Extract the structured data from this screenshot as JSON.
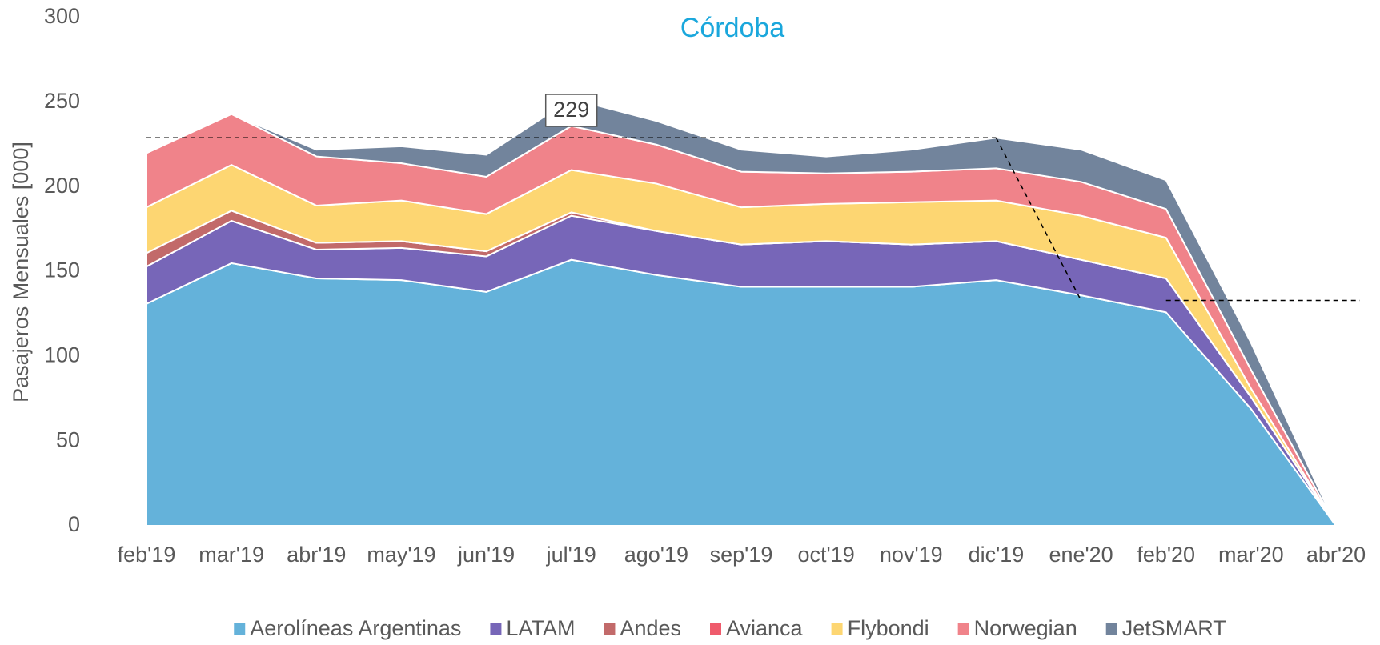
{
  "chart_data": {
    "type": "stacked_area",
    "title": "Córdoba",
    "y_label": "Pasajeros Mensuales [000]",
    "categories": [
      "feb'19",
      "mar'19",
      "abr'19",
      "may'19",
      "jun'19",
      "jul'19",
      "ago'19",
      "sep'19",
      "oct'19",
      "nov'19",
      "dic'19",
      "ene'20",
      "feb'20",
      "mar'20",
      "abr'20"
    ],
    "series": [
      {
        "name": "Aerolíneas Argentinas",
        "color": "#64b2da",
        "values": [
          131,
          155,
          146,
          145,
          138,
          157,
          148,
          141,
          141,
          141,
          145,
          136,
          126,
          69,
          0
        ]
      },
      {
        "name": "LATAM",
        "color": "#7766b8",
        "values": [
          22,
          25,
          17,
          19,
          21,
          26,
          26,
          25,
          27,
          25,
          23,
          21,
          20,
          7,
          0
        ]
      },
      {
        "name": "Andes",
        "color": "#c26a6a",
        "values": [
          8,
          6,
          4,
          4,
          3,
          2,
          0,
          0,
          0,
          0,
          0,
          0,
          0,
          0,
          0
        ]
      },
      {
        "name": "Avianca",
        "color": "#ef5b6c",
        "values": [
          0,
          0,
          0,
          0,
          0,
          0,
          0,
          0,
          0,
          0,
          0,
          0,
          0,
          0,
          0
        ]
      },
      {
        "name": "Flybondi",
        "color": "#fdd672",
        "values": [
          27,
          27,
          22,
          24,
          22,
          25,
          28,
          22,
          22,
          25,
          24,
          26,
          24,
          5,
          0
        ]
      },
      {
        "name": "Norwegian",
        "color": "#f0838a",
        "values": [
          32,
          30,
          29,
          22,
          22,
          26,
          23,
          21,
          18,
          18,
          19,
          20,
          17,
          11,
          0
        ]
      },
      {
        "name": "JetSMART",
        "color": "#72849c",
        "values": [
          0,
          0,
          4,
          10,
          13,
          16,
          14,
          13,
          10,
          13,
          18,
          19,
          17,
          16,
          0
        ]
      }
    ],
    "ylim": [
      0,
      300
    ],
    "yticks": [
      0,
      50,
      100,
      150,
      200,
      250,
      300
    ],
    "reference_lines": [
      {
        "value": 229,
        "label": "229",
        "from": "feb'19",
        "to": "dic'19"
      },
      {
        "value": 133,
        "from": "feb'20",
        "to": "abr'20"
      }
    ],
    "legend": "bottom"
  }
}
